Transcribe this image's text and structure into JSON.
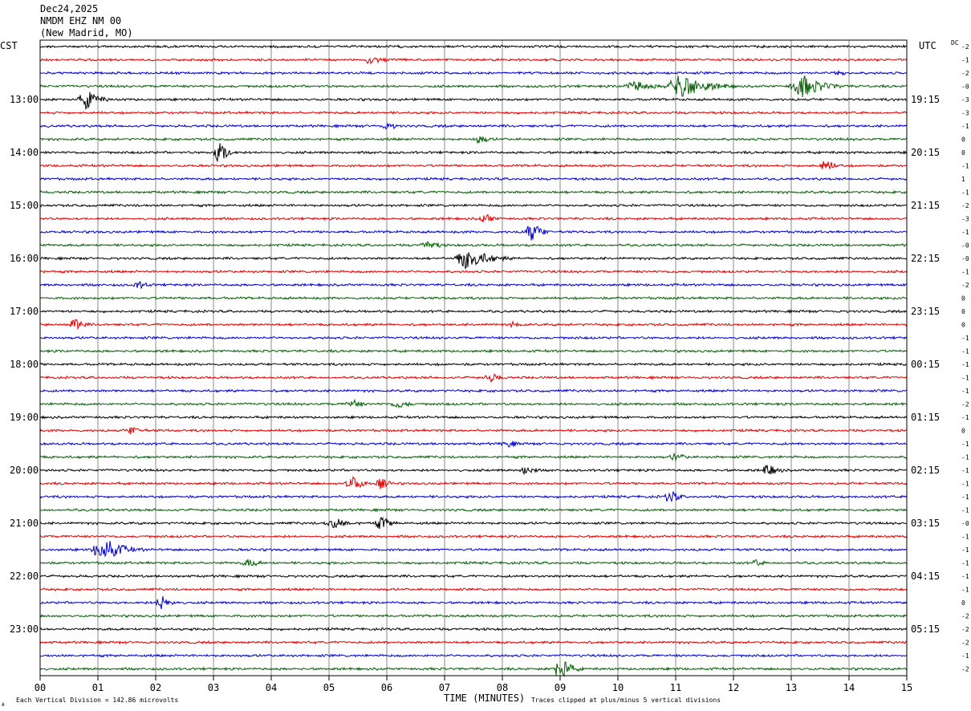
{
  "header": {
    "date": "Dec24,2025",
    "station": "NMDM EHZ NM 00",
    "location": "(New Madrid, MO)"
  },
  "left_timezone": "CST",
  "right_timezone": "UTC",
  "dc_label": "DC",
  "footer": {
    "vertical_division": "Each Vertical Division =  142.86 microvolts",
    "clip_note": "Traces clipped at plus/minus 5 vertical divisions",
    "corner_mark": "A"
  },
  "chart_data": {
    "type": "line",
    "xlabel": "TIME (MINUTES)",
    "x_ticks": [
      "00",
      "01",
      "02",
      "03",
      "04",
      "05",
      "06",
      "07",
      "08",
      "09",
      "10",
      "11",
      "12",
      "13",
      "14",
      "15"
    ],
    "xlim": [
      0,
      15
    ],
    "trace_colors": [
      "#000000",
      "#e00000",
      "#0000d0",
      "#006000"
    ],
    "trace_count": 48,
    "left_hour_labels": [
      "13:00",
      "14:00",
      "15:00",
      "16:00",
      "17:00",
      "18:00",
      "19:00",
      "20:00",
      "21:00",
      "22:00",
      "23:00"
    ],
    "right_hour_labels": [
      "19:15",
      "20:15",
      "21:15",
      "22:15",
      "23:15",
      "00:15",
      "01:15",
      "02:15",
      "03:15",
      "04:15",
      "05:15"
    ],
    "dc_offsets": [
      "-2",
      "-1",
      "-2",
      "-0",
      "-3",
      "-3",
      "-1",
      "0",
      "0",
      "-1",
      "1",
      "-1",
      "-2",
      "-3",
      "-1",
      "-0",
      "-0",
      "-1",
      "-2",
      "0",
      "0",
      "0",
      "-1",
      "-1",
      "-1",
      "-1",
      "-1",
      "-2",
      "-1",
      "0",
      "-1",
      "-1",
      "-1",
      "-1",
      "-1",
      "-1",
      "-0",
      "-1",
      "-1",
      "-1",
      "-1",
      "-1",
      "0",
      "-2",
      "-2",
      "-2",
      "-1",
      "-2"
    ],
    "events": [
      {
        "trace": 1,
        "minute": 5.7,
        "amplitude": 0.35,
        "duration_min": 0.8
      },
      {
        "trace": 2,
        "minute": 13.8,
        "amplitude": 0.3,
        "duration_min": 0.5
      },
      {
        "trace": 3,
        "minute": 11.1,
        "amplitude": 1.0,
        "duration_min": 1.2
      },
      {
        "trace": 3,
        "minute": 13.2,
        "amplitude": 0.9,
        "duration_min": 1.0
      },
      {
        "trace": 3,
        "minute": 10.3,
        "amplitude": 0.5,
        "duration_min": 0.8
      },
      {
        "trace": 4,
        "minute": 0.8,
        "amplitude": 0.8,
        "duration_min": 0.6
      },
      {
        "trace": 6,
        "minute": 6.0,
        "amplitude": 0.3,
        "duration_min": 0.6
      },
      {
        "trace": 7,
        "minute": 7.6,
        "amplitude": 0.35,
        "duration_min": 0.5
      },
      {
        "trace": 8,
        "minute": 3.1,
        "amplitude": 1.0,
        "duration_min": 0.4
      },
      {
        "trace": 9,
        "minute": 13.6,
        "amplitude": 0.5,
        "duration_min": 0.5
      },
      {
        "trace": 13,
        "minute": 7.7,
        "amplitude": 0.4,
        "duration_min": 0.5
      },
      {
        "trace": 14,
        "minute": 8.5,
        "amplitude": 0.8,
        "duration_min": 0.5
      },
      {
        "trace": 15,
        "minute": 6.7,
        "amplitude": 0.4,
        "duration_min": 0.6
      },
      {
        "trace": 16,
        "minute": 7.4,
        "amplitude": 0.9,
        "duration_min": 1.0
      },
      {
        "trace": 18,
        "minute": 1.7,
        "amplitude": 0.3,
        "duration_min": 0.6
      },
      {
        "trace": 21,
        "minute": 0.6,
        "amplitude": 0.6,
        "duration_min": 0.4
      },
      {
        "trace": 21,
        "minute": 8.2,
        "amplitude": 0.3,
        "duration_min": 0.4
      },
      {
        "trace": 25,
        "minute": 7.8,
        "amplitude": 0.35,
        "duration_min": 0.6
      },
      {
        "trace": 27,
        "minute": 5.4,
        "amplitude": 0.4,
        "duration_min": 0.5
      },
      {
        "trace": 27,
        "minute": 6.2,
        "amplitude": 0.35,
        "duration_min": 0.6
      },
      {
        "trace": 29,
        "minute": 1.6,
        "amplitude": 0.4,
        "duration_min": 0.5
      },
      {
        "trace": 30,
        "minute": 8.1,
        "amplitude": 0.3,
        "duration_min": 0.6
      },
      {
        "trace": 31,
        "minute": 11.0,
        "amplitude": 0.3,
        "duration_min": 0.6
      },
      {
        "trace": 32,
        "minute": 8.4,
        "amplitude": 0.5,
        "duration_min": 0.4
      },
      {
        "trace": 32,
        "minute": 12.6,
        "amplitude": 0.5,
        "duration_min": 0.5
      },
      {
        "trace": 33,
        "minute": 5.4,
        "amplitude": 0.6,
        "duration_min": 0.6
      },
      {
        "trace": 33,
        "minute": 5.9,
        "amplitude": 0.5,
        "duration_min": 0.4
      },
      {
        "trace": 34,
        "minute": 10.9,
        "amplitude": 0.6,
        "duration_min": 0.4
      },
      {
        "trace": 36,
        "minute": 5.1,
        "amplitude": 0.4,
        "duration_min": 0.8
      },
      {
        "trace": 36,
        "minute": 5.9,
        "amplitude": 0.5,
        "duration_min": 0.6
      },
      {
        "trace": 38,
        "minute": 1.1,
        "amplitude": 1.0,
        "duration_min": 0.9
      },
      {
        "trace": 39,
        "minute": 3.6,
        "amplitude": 0.35,
        "duration_min": 0.6
      },
      {
        "trace": 39,
        "minute": 12.4,
        "amplitude": 0.3,
        "duration_min": 0.4
      },
      {
        "trace": 42,
        "minute": 2.1,
        "amplitude": 0.6,
        "duration_min": 0.5
      },
      {
        "trace": 47,
        "minute": 9.0,
        "amplitude": 1.0,
        "duration_min": 0.5
      }
    ]
  }
}
